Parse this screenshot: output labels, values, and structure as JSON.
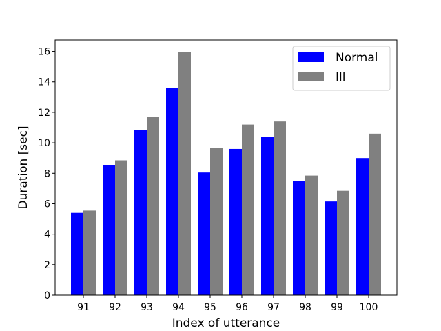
{
  "chart_data": {
    "type": "bar",
    "title": "",
    "xlabel": "Index of utterance",
    "ylabel": "Duration [sec]",
    "categories": [
      "91",
      "92",
      "93",
      "94",
      "95",
      "96",
      "97",
      "98",
      "99",
      "100"
    ],
    "series": [
      {
        "name": "Normal",
        "color": "#0000ff",
        "values": [
          5.4,
          8.55,
          10.85,
          13.6,
          8.05,
          9.6,
          10.4,
          7.5,
          6.15,
          9.0
        ]
      },
      {
        "name": "Ill",
        "color": "#808080",
        "values": [
          5.55,
          8.85,
          11.7,
          15.95,
          9.65,
          11.2,
          11.4,
          7.85,
          6.85,
          10.6
        ]
      }
    ],
    "ylim": [
      0,
      16.75
    ],
    "yticks": [
      0,
      2,
      4,
      6,
      8,
      10,
      12,
      14,
      16
    ],
    "grid": false,
    "legend": "upper-right"
  }
}
